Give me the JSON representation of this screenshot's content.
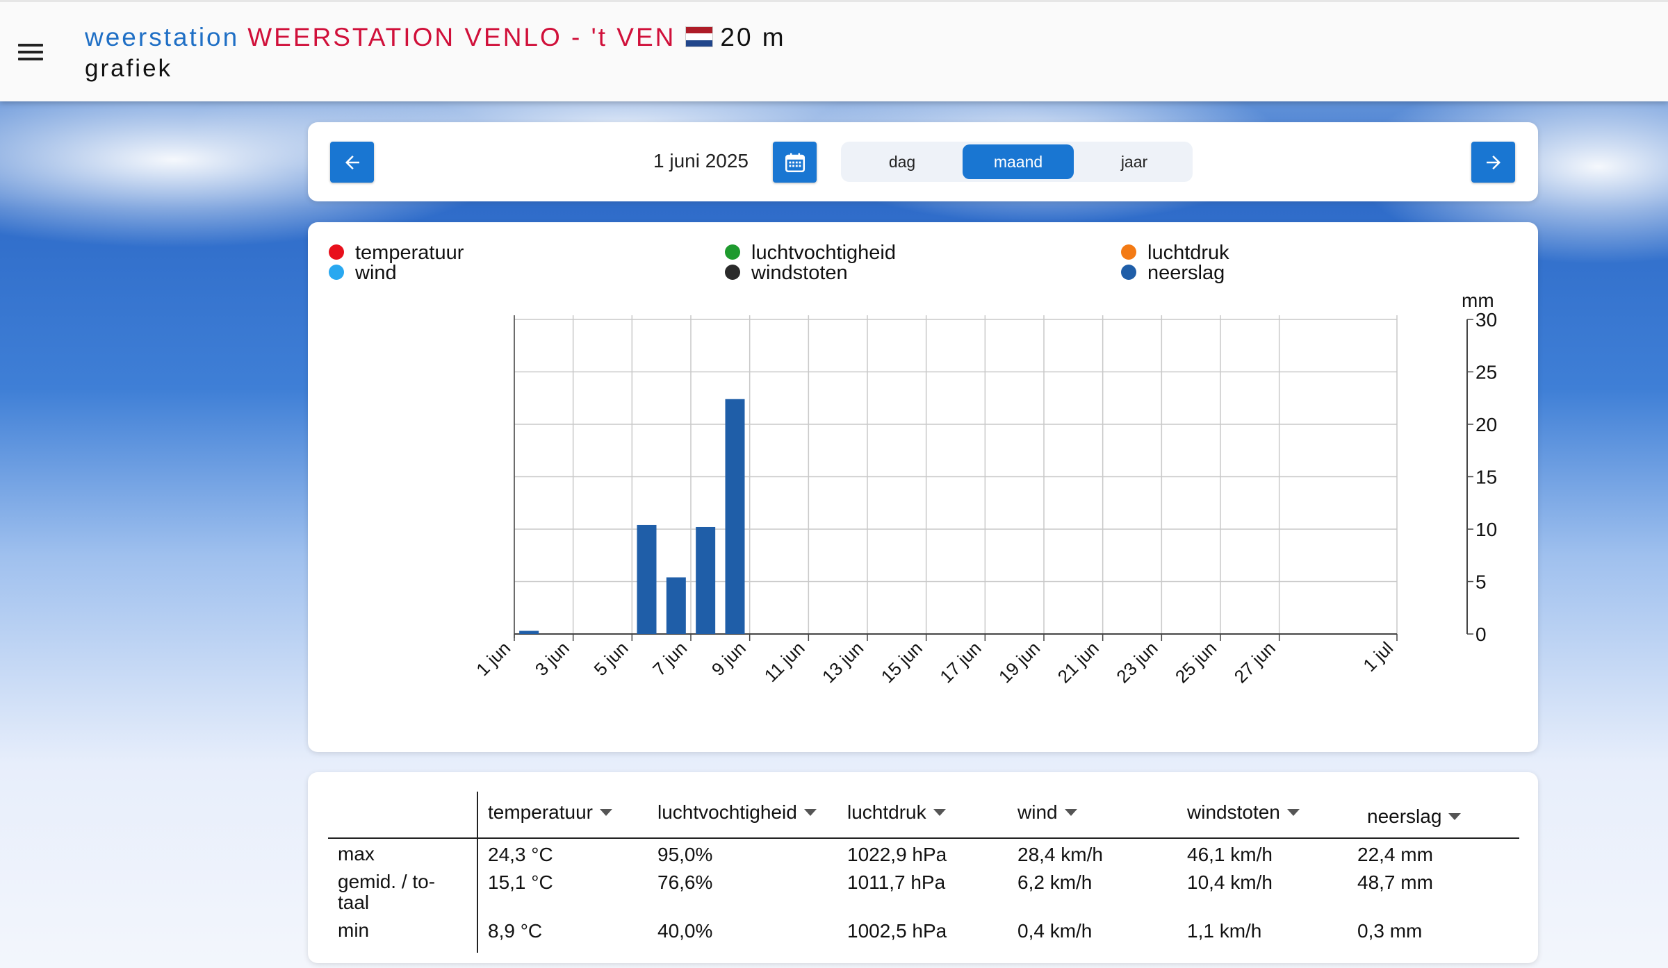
{
  "header": {
    "title_prefix": "weerstation",
    "station_name": "WEERSTATION VENLO - 't VEN",
    "altitude": "20 m",
    "subtitle": "grafiek",
    "flag_colors": [
      "#ae1c28",
      "#ffffff",
      "#21468b"
    ]
  },
  "nav": {
    "date": "1 juni 2025",
    "periods": [
      {
        "label": "dag",
        "active": false
      },
      {
        "label": "maand",
        "active": true
      },
      {
        "label": "jaar",
        "active": false
      }
    ]
  },
  "legend": [
    {
      "label": "temperatuur",
      "color": "#e8101c"
    },
    {
      "label": "wind",
      "color": "#29a8f0"
    },
    {
      "label": "luchtvochtigheid",
      "color": "#1e9a2e"
    },
    {
      "label": "windstoten",
      "color": "#2a2a2a"
    },
    {
      "label": "luchtdruk",
      "color": "#f37a14"
    },
    {
      "label": "neerslag",
      "color": "#1f5ea8"
    }
  ],
  "chart_data": {
    "type": "bar",
    "series": [
      {
        "name": "neerslag",
        "color": "#1f5ea8",
        "points": [
          [
            1,
            0.3
          ],
          [
            5,
            10.4
          ],
          [
            6,
            5.4
          ],
          [
            7,
            10.2
          ],
          [
            8,
            22.4
          ]
        ]
      }
    ],
    "xlim": [
      1,
      31
    ],
    "x_ticks": [
      {
        "day": 1,
        "label": "1 jun"
      },
      {
        "day": 3,
        "label": "3 jun"
      },
      {
        "day": 5,
        "label": "5 jun"
      },
      {
        "day": 7,
        "label": "7 jun"
      },
      {
        "day": 9,
        "label": "9 jun"
      },
      {
        "day": 11,
        "label": "11 jun"
      },
      {
        "day": 13,
        "label": "13 jun"
      },
      {
        "day": 15,
        "label": "15 jun"
      },
      {
        "day": 17,
        "label": "17 jun"
      },
      {
        "day": 19,
        "label": "19 jun"
      },
      {
        "day": 21,
        "label": "21 jun"
      },
      {
        "day": 23,
        "label": "23 jun"
      },
      {
        "day": 25,
        "label": "25 jun"
      },
      {
        "day": 27,
        "label": "27 jun"
      },
      {
        "day": 31,
        "label": "1 jul"
      }
    ],
    "ylabel": "mm",
    "ylim": [
      0,
      30
    ],
    "y_ticks": [
      "0",
      "5",
      "10",
      "15",
      "20",
      "25",
      "30"
    ],
    "grid": true
  },
  "table": {
    "columns": [
      {
        "label": "temperatuur"
      },
      {
        "label": "luchtvochtigheid"
      },
      {
        "label": "luchtdruk"
      },
      {
        "label": "wind"
      },
      {
        "label": "windstoten"
      },
      {
        "label": "neerslag"
      }
    ],
    "rows": [
      {
        "label": "max",
        "values": [
          "24,3 °C",
          "95,0%",
          "1022,9 hPa",
          "28,4 km/h",
          "46,1 km/h",
          "22,4 mm"
        ]
      },
      {
        "label": "gemid. / to-taal",
        "label_line1": "gemid. / to-",
        "label_line2": "taal",
        "values": [
          "15,1 °C",
          "76,6%",
          "1011,7 hPa",
          "6,2 km/h",
          "10,4 km/h",
          "48,7 mm"
        ]
      },
      {
        "label": "min",
        "values": [
          "8,9 °C",
          "40,0%",
          "1002,5 hPa",
          "0,4 km/h",
          "1,1 km/h",
          "0,3 mm"
        ]
      }
    ]
  }
}
